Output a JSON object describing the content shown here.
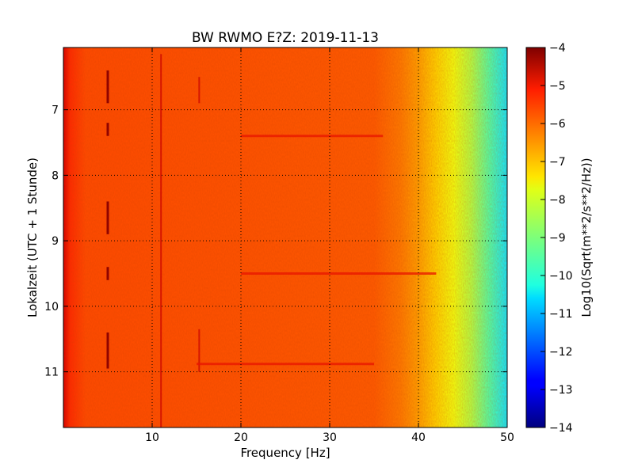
{
  "chart_data": {
    "type": "heatmap",
    "title": "BW RWMO E?Z: 2019-11-13",
    "xlabel": "Frequency [Hz]",
    "ylabel": "Lokalzeit (UTC + 1 Stunde)",
    "xlim": [
      0,
      50
    ],
    "ylim": [
      11.85,
      6.05
    ],
    "y_inverted": true,
    "x_ticks": [
      10,
      20,
      30,
      40,
      50
    ],
    "x_tick_labels": [
      "10",
      "20",
      "30",
      "40",
      "50"
    ],
    "y_ticks": [
      7,
      8,
      9,
      10,
      11
    ],
    "y_tick_labels": [
      "7",
      "8",
      "9",
      "10",
      "11"
    ],
    "grid": true,
    "colorbar": {
      "label": "Log10(Sqrt(m**2/s**2/Hz))",
      "colormap": "jet",
      "range": [
        -14,
        -4
      ],
      "ticks": [
        -4,
        -5,
        -6,
        -7,
        -8,
        -9,
        -10,
        -11,
        -12,
        -13,
        -14
      ],
      "tick_labels": [
        "−4",
        "−5",
        "−6",
        "−7",
        "−8",
        "−9",
        "−10",
        "−11",
        "−12",
        "−13",
        "−14"
      ]
    },
    "spectrum_profile": {
      "frequency_hz": [
        0,
        1,
        3,
        5,
        10,
        20,
        30,
        36,
        38,
        40,
        42,
        44,
        46,
        48,
        50
      ],
      "log10_amplitude": [
        -5.0,
        -5.3,
        -5.6,
        -5.6,
        -5.7,
        -5.8,
        -5.8,
        -6.0,
        -6.3,
        -6.7,
        -7.4,
        -7.9,
        -8.6,
        -9.4,
        -10.2
      ]
    },
    "features": [
      {
        "description": "strong narrow line",
        "frequency_hz": 5.0,
        "from": 6.4,
        "to": 6.9
      },
      {
        "description": "strong narrow line",
        "frequency_hz": 5.0,
        "from": 7.2,
        "to": 7.4
      },
      {
        "description": "strong narrow line",
        "frequency_hz": 5.0,
        "from": 8.4,
        "to": 8.9
      },
      {
        "description": "strong narrow line",
        "frequency_hz": 5.0,
        "from": 9.4,
        "to": 9.6
      },
      {
        "description": "strong narrow line",
        "frequency_hz": 5.0,
        "from": 10.4,
        "to": 10.95
      },
      {
        "description": "line",
        "frequency_hz": 11.0,
        "from": 6.15,
        "to": 11.85
      },
      {
        "description": "line",
        "frequency_hz": 15.3,
        "from": 6.5,
        "to": 6.9
      },
      {
        "description": "line",
        "frequency_hz": 15.3,
        "from": 10.35,
        "to": 11.0
      },
      {
        "description": "horizontal band",
        "frequency_hz": [
          20,
          42
        ],
        "from": 9.5,
        "to": 9.5
      },
      {
        "description": "horizontal band",
        "frequency_hz": [
          15,
          35
        ],
        "from": 10.88,
        "to": 10.88
      },
      {
        "description": "horizontal band",
        "frequency_hz": [
          20,
          36
        ],
        "from": 7.4,
        "to": 7.5
      }
    ]
  }
}
